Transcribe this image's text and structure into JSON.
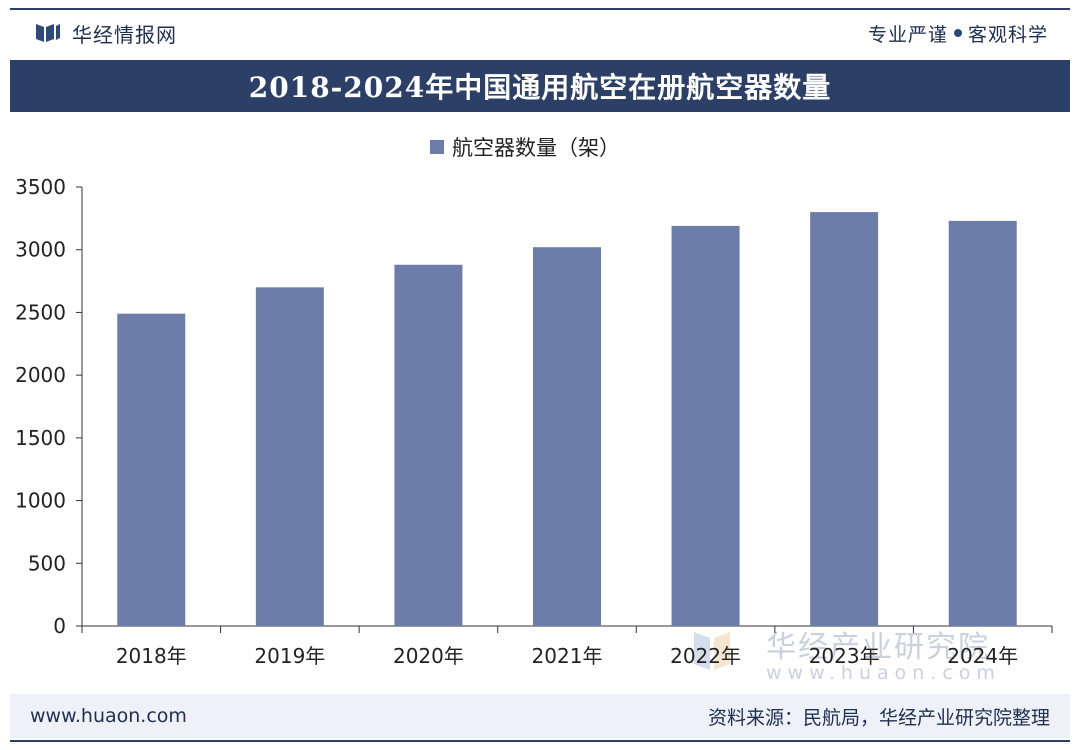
{
  "header": {
    "brand_name": "华经情报网",
    "slogan_left": "专业严谨",
    "slogan_right": "客观科学"
  },
  "footer": {
    "website": "www.huaon.com",
    "source": "资料来源：民航局，华经产业研究院整理"
  },
  "watermark": {
    "name": "华经产业研究院",
    "url": "www.huaon.com"
  },
  "colors": {
    "title_bg": "#2c3f66",
    "bar": "#6b7da8",
    "axis": "#333333",
    "footer_bg": "#eef2f8"
  },
  "chart_data": {
    "type": "bar",
    "title": "2018-2024年中国通用航空在册航空器数量",
    "categories": [
      "2018年",
      "2019年",
      "2020年",
      "2021年",
      "2022年",
      "2023年",
      "2024年"
    ],
    "series": [
      {
        "name": "航空器数量（架）",
        "values": [
          2490,
          2700,
          2880,
          3020,
          3190,
          3300,
          3230
        ]
      }
    ],
    "ylim": [
      0,
      3500
    ],
    "yticks": [
      0,
      500,
      1000,
      1500,
      2000,
      2500,
      3000,
      3500
    ],
    "xlabel": "",
    "ylabel": "",
    "grid": false,
    "legend": "top-center"
  }
}
